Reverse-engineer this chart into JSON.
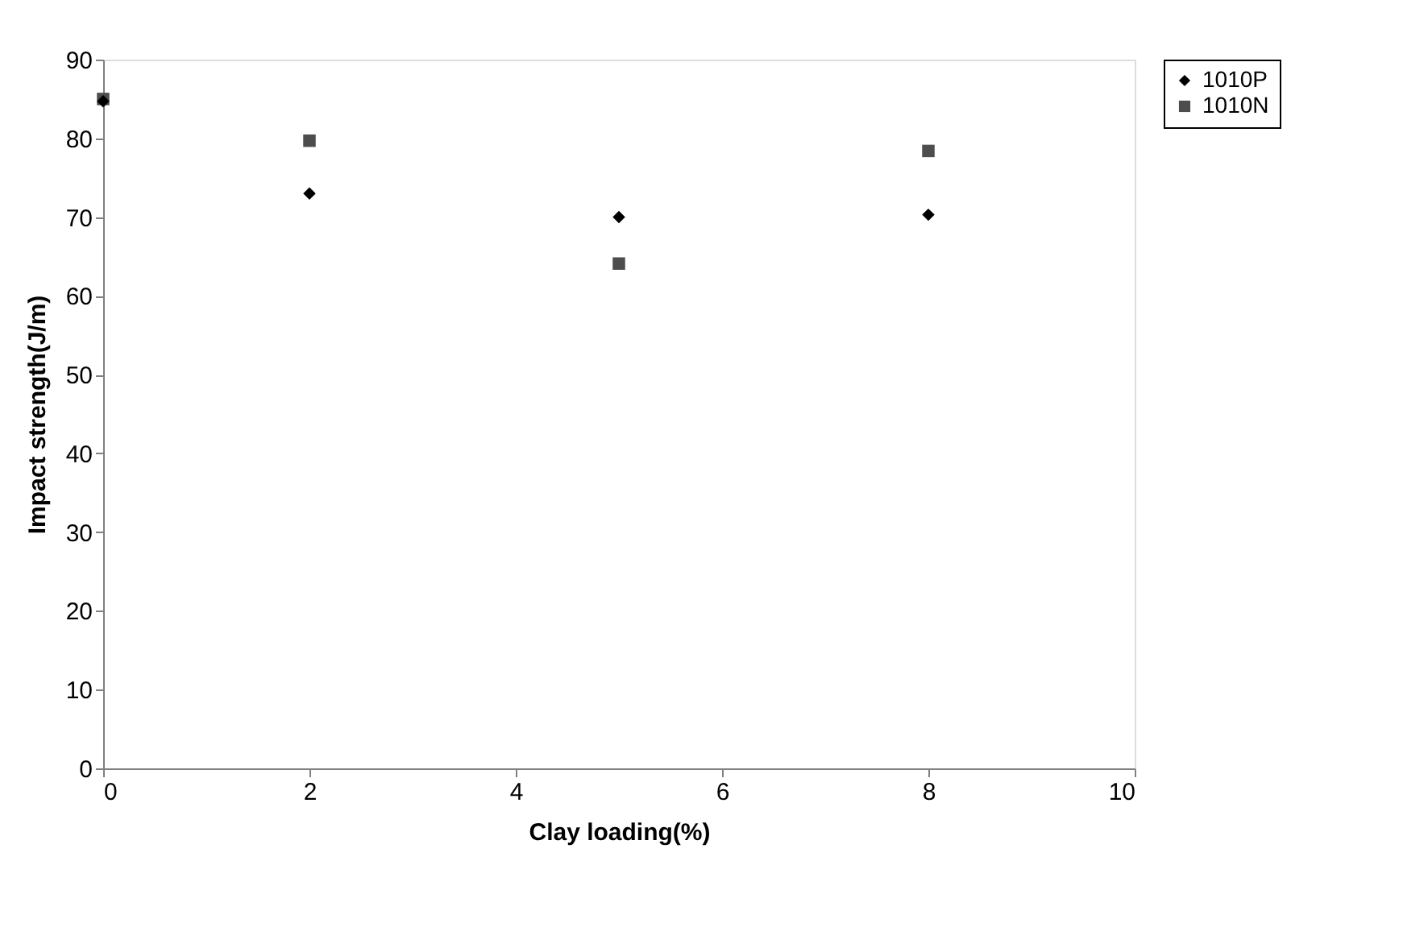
{
  "chart_data": {
    "type": "scatter",
    "xlabel": "Clay loading(%)",
    "ylabel": "Impact strength(J/m)",
    "series": [
      {
        "name": "1010P",
        "color": "#000000",
        "marker": "diamond",
        "x": [
          0,
          2,
          5,
          8
        ],
        "values": [
          84.7,
          73,
          70,
          70.3
        ]
      },
      {
        "name": "1010N",
        "color": "#4d4d4d",
        "marker": "square",
        "x": [
          0,
          2,
          5,
          8
        ],
        "values": [
          85,
          79.7,
          64.1,
          78.4
        ]
      }
    ],
    "xlim": [
      0,
      10
    ],
    "xticks": [
      0,
      2,
      4,
      6,
      8,
      10
    ],
    "ylim": [
      0,
      90
    ],
    "yticks": [
      0,
      10,
      20,
      30,
      40,
      50,
      60,
      70,
      80,
      90
    ],
    "grid": false,
    "legend": "right"
  }
}
